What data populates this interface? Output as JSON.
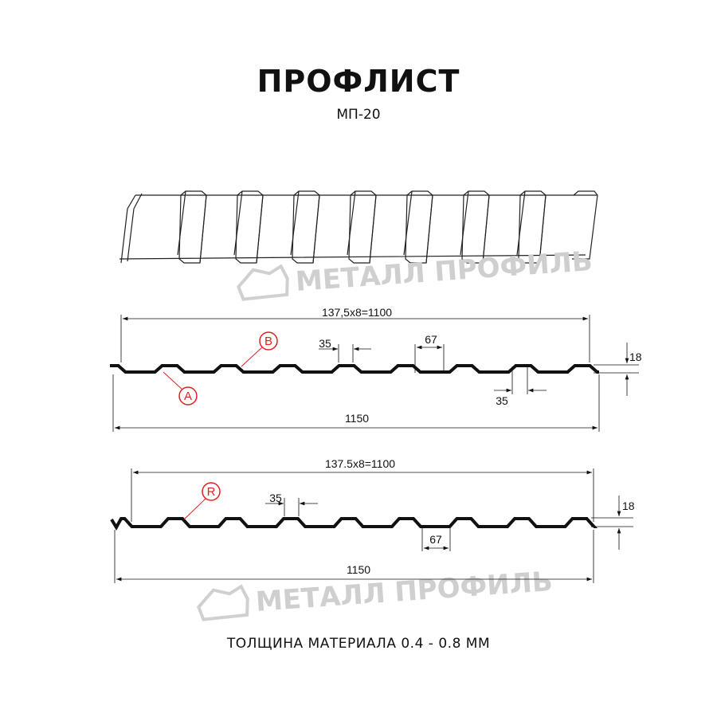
{
  "header": {
    "title": "ПРОФЛИСТ",
    "subtitle": "МП-20"
  },
  "watermark": {
    "text": "МЕТАЛЛ ПРОФИЛЬ"
  },
  "profile_1": {
    "span_label": "137,5x8=1100",
    "total_label": "1150",
    "crest_label": "35",
    "trough_label": "67",
    "bottom_crest_label": "35",
    "height_label": "18",
    "marker_a": "A",
    "marker_b": "B"
  },
  "profile_2": {
    "span_label": "137.5x8=1100",
    "total_label": "1150",
    "crest_label": "35",
    "trough_label": "67",
    "height_label": "18",
    "marker_r": "R"
  },
  "footer": {
    "text": "ТОЛЩИНА МАТЕРИАЛА 0.4 - 0.8 ММ"
  },
  "colors": {
    "profile": "#111111",
    "marker": "#e02020",
    "watermark": "#cfcfcf"
  }
}
